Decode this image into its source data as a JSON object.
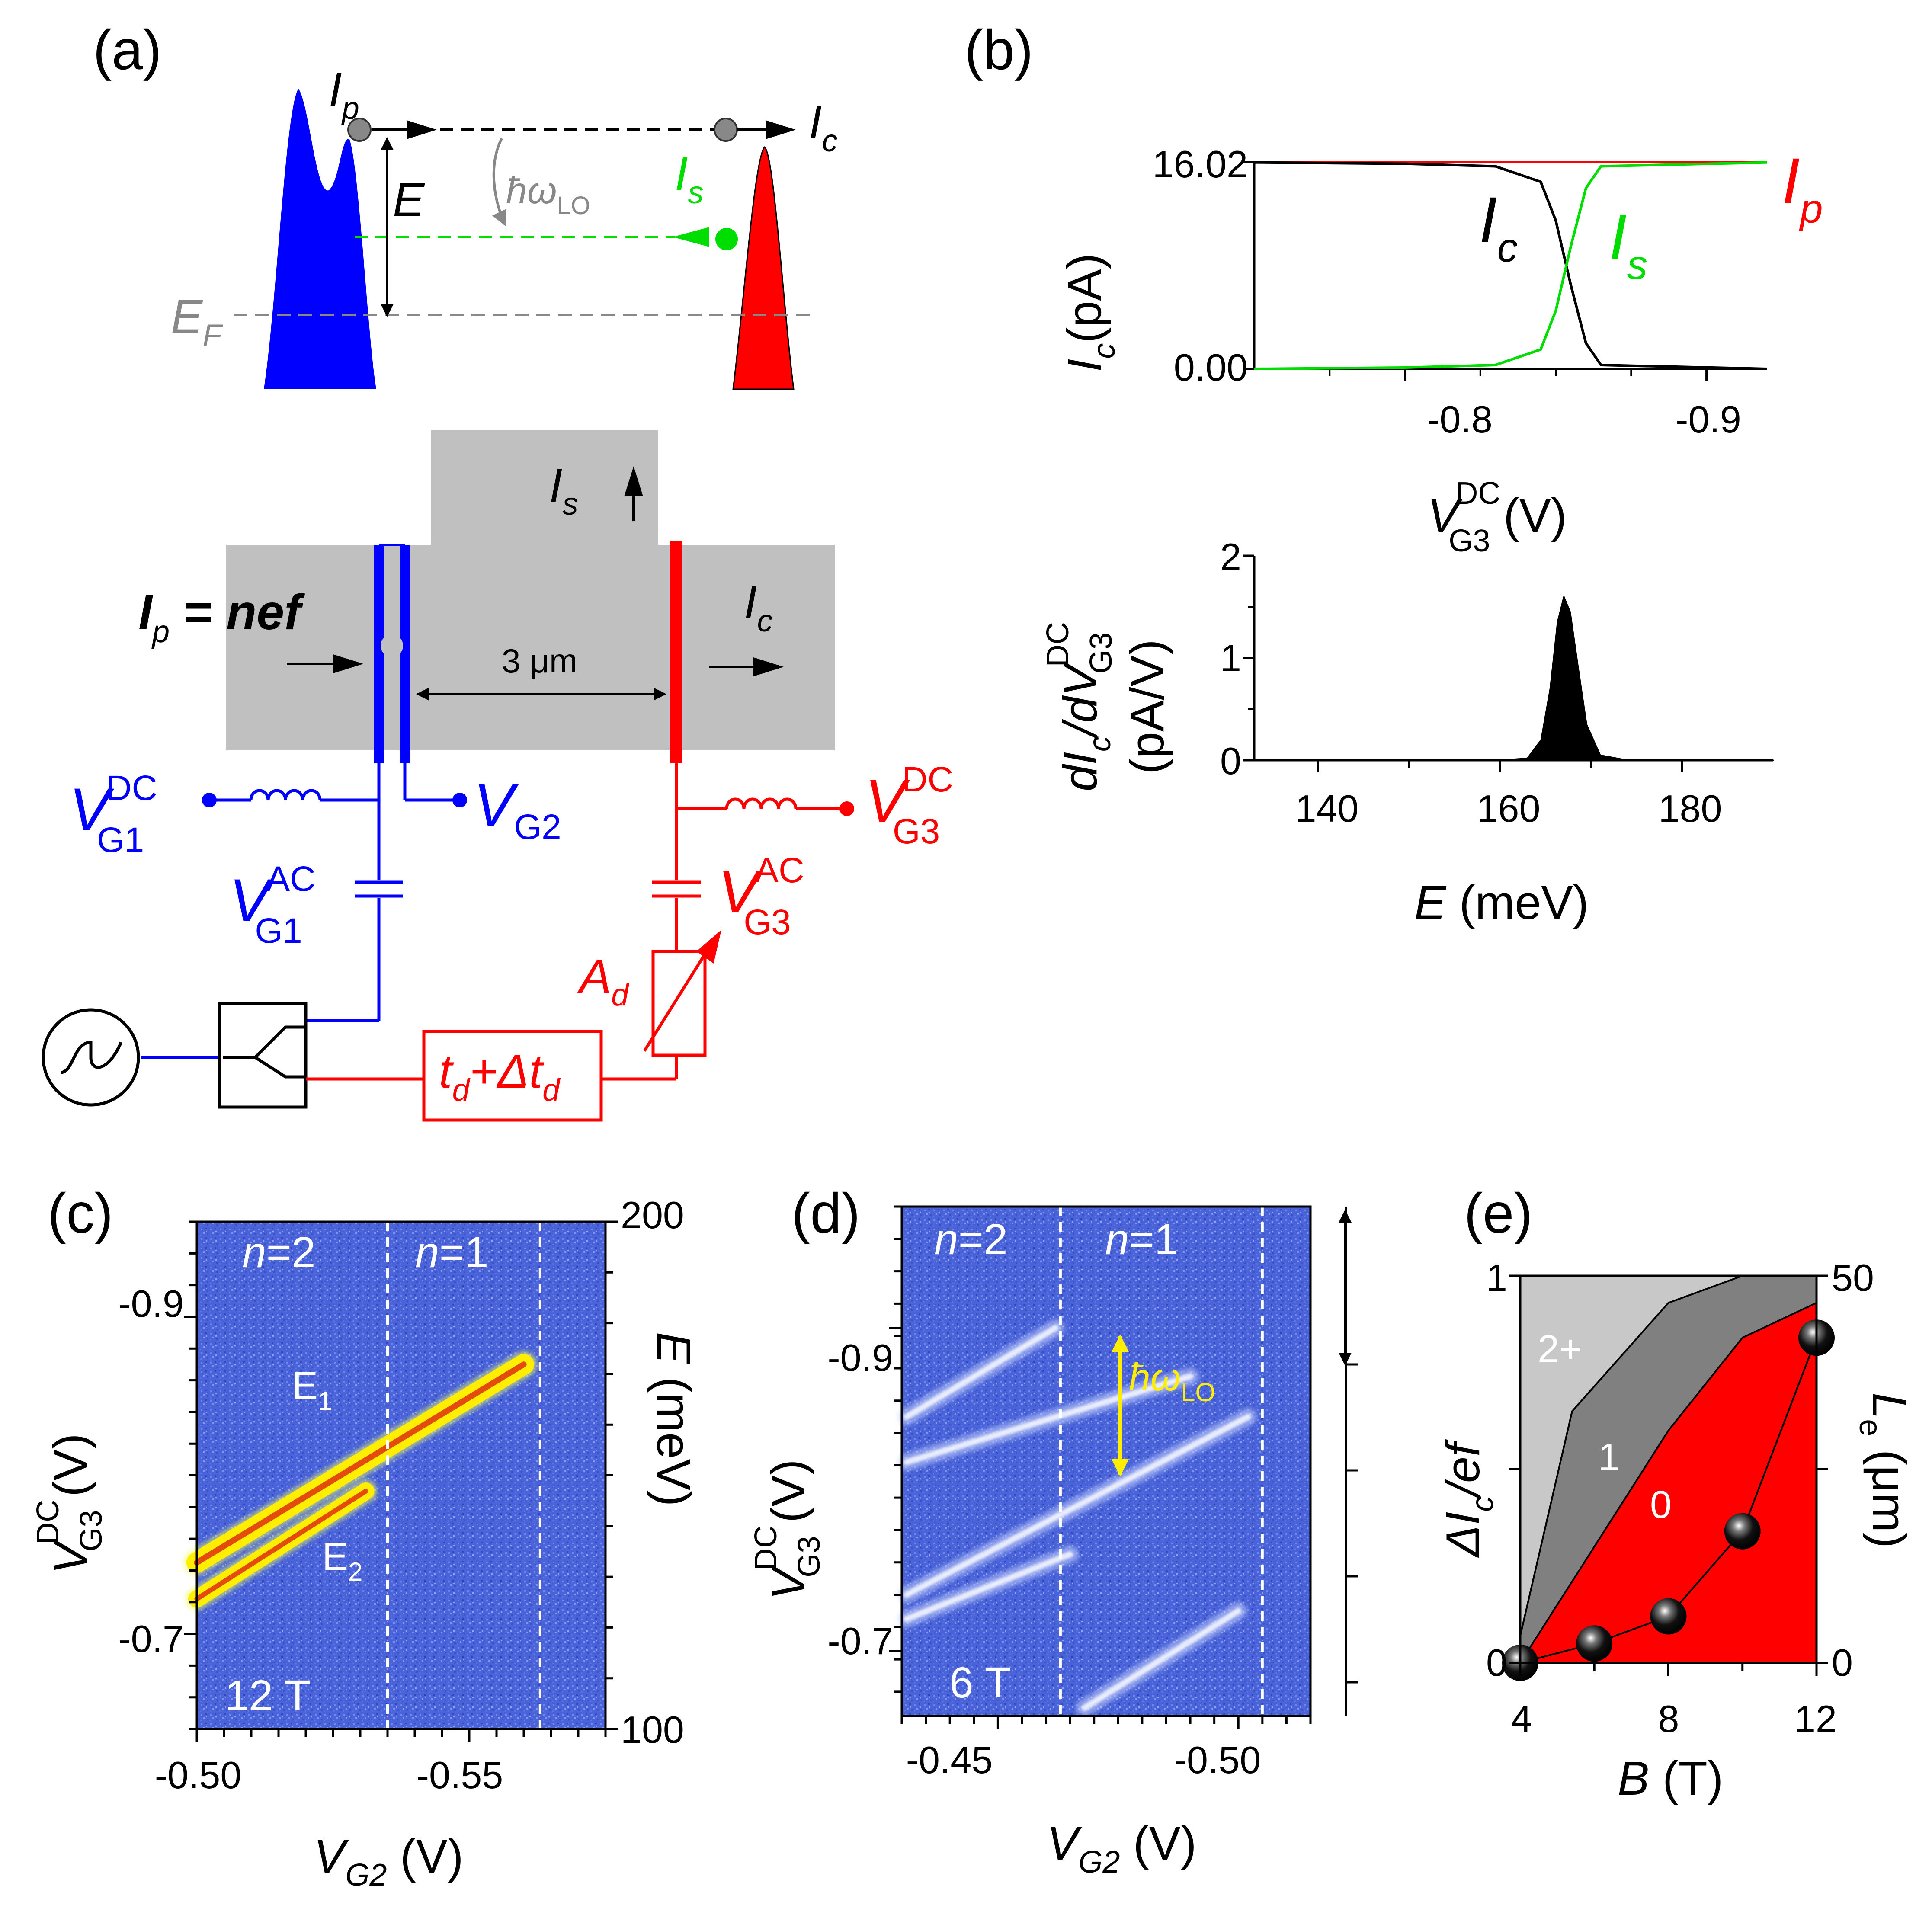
{
  "panels": {
    "a": "(a)",
    "b": "(b)",
    "c": "(c)",
    "d": "(d)",
    "e": "(e)"
  },
  "a": {
    "Ip": "I",
    "Ip_sub": "p",
    "Ic": "I",
    "Ic_sub": "c",
    "Is": "I",
    "Is_sub": "s",
    "E": "E",
    "EF": "E",
    "EF_sub": "F",
    "hw": "ħω",
    "hw_sub": "LO",
    "eq_I": "I",
    "eq_sub": "p",
    "eq_rest": " = nef",
    "dist": "3 μm",
    "VG1": "V",
    "VG1_sup": "DC",
    "VG1_sub": "G1",
    "VG2": "V",
    "VG2_sub": "G2",
    "VG3": "V",
    "VG3_sup": "DC",
    "VG3_sub": "G3",
    "VG1ac": "V",
    "VG1ac_sup": "AC",
    "VG1ac_sub": "G1",
    "VG3ac": "V",
    "VG3ac_sup": "AC",
    "VG3ac_sub": "G3",
    "Ad": "A",
    "Ad_sub": "d",
    "td_t": "t",
    "td_sub": "d",
    "td_plus": "+Δt",
    "td_sub2": "d"
  },
  "b_top": {
    "ylabel": "I",
    "ylabel_sub": "c",
    "ylabel_unit": "(pA)",
    "xlabel": "V",
    "xlabel_sup": "DC",
    "xlabel_sub": "G3",
    "xlabel_unit": " (V)",
    "yticks": [
      "16.02",
      "0.00"
    ],
    "xticks": [
      "-0.8",
      "-0.9"
    ],
    "Ic": "I",
    "Ic_sub": "c",
    "Is": "I",
    "Is_sub": "s",
    "Ip": "I",
    "Ip_sub": "p",
    "colors": {
      "Ic": "#000000",
      "Is": "#00dd00",
      "Ip": "#ff0000"
    }
  },
  "b_bot": {
    "ylabel1": "dI",
    "ylabel1_sub": "c",
    "ylabel1_mid": "/dV",
    "ylabel1_sup": "DC",
    "ylabel1_sub2": "G3",
    "ylabel2": "(pA/V)",
    "yticks": [
      "2",
      "1",
      "0"
    ],
    "xticks": [
      "140",
      "160",
      "180"
    ],
    "xlabel": "E",
    "xlabel_unit": " (meV)"
  },
  "c": {
    "n2": "n",
    "n2_rest": "=2",
    "n1": "n",
    "n1_rest": "=1",
    "E1": "E",
    "E1_sub": "1",
    "E2": "E",
    "E2_sub": "2",
    "field": "12 T",
    "yticks": [
      "-0.9",
      "-0.7"
    ],
    "xticks": [
      "-0.50",
      "-0.55"
    ],
    "ylabel": "V",
    "ylabel_sup": "DC",
    "ylabel_sub": "G3",
    "ylabel_unit": " (V)",
    "xlabel": "V",
    "xlabel_sub": "G2",
    "xlabel_unit": " (V)",
    "rticks": [
      "200",
      "100"
    ],
    "rlabel": "E",
    "rlabel_unit": " (meV)"
  },
  "d": {
    "n2": "n",
    "n2_rest": "=2",
    "n1": "n",
    "n1_rest": "=1",
    "field": "6 T",
    "hw": "ħω",
    "hw_sub": "LO",
    "yticks": [
      "-0.9",
      "-0.7"
    ],
    "xticks": [
      "-0.45",
      "-0.50"
    ],
    "ylabel": "V",
    "ylabel_sup": "DC",
    "ylabel_sub": "G3",
    "ylabel_unit": " (V)",
    "xlabel": "V",
    "xlabel_sub": "G2",
    "xlabel_unit": " (V)"
  },
  "e": {
    "regions": [
      "2+",
      "1",
      "0"
    ],
    "yticks": [
      "1",
      "0"
    ],
    "xticks": [
      "4",
      "8",
      "12"
    ],
    "rticks": [
      "50",
      "0"
    ],
    "ylabel": "ΔI",
    "ylabel_sub": "c",
    "ylabel_rest": "/ef",
    "xlabel": "B",
    "xlabel_unit": " (T)",
    "rlabel": "L",
    "rlabel_sub": "e",
    "rlabel_unit": " (μm)",
    "colors": {
      "region_2plus": "#c8c8c8",
      "region_1": "#808080",
      "region_0": "#ff0000"
    }
  },
  "chart_data": [
    {
      "type": "line",
      "panel": "b-top",
      "xlabel": "V_G3^DC (V)",
      "ylabel": "I_c (pA)",
      "xlim": [
        -0.75,
        -0.92
      ],
      "ylim": [
        0,
        16.02
      ],
      "series": [
        {
          "name": "I_p",
          "x": [
            -0.75,
            -0.92
          ],
          "values": [
            16.02,
            16.02
          ]
        },
        {
          "name": "I_c",
          "x": [
            -0.75,
            -0.8,
            -0.83,
            -0.845,
            -0.85,
            -0.855,
            -0.86,
            -0.865,
            -0.92
          ],
          "values": [
            16.0,
            15.9,
            15.7,
            14.5,
            11.5,
            6.5,
            2.0,
            0.3,
            0.0
          ]
        },
        {
          "name": "I_s",
          "x": [
            -0.75,
            -0.8,
            -0.83,
            -0.845,
            -0.85,
            -0.855,
            -0.86,
            -0.865,
            -0.92
          ],
          "values": [
            0.0,
            0.1,
            0.3,
            1.5,
            4.5,
            9.5,
            14.0,
            15.7,
            16.0
          ]
        }
      ]
    },
    {
      "type": "area",
      "panel": "b-bottom",
      "xlabel": "E (meV)",
      "ylabel": "dI_c/dV_G3^DC (pA/V)",
      "xlim": [
        133,
        190
      ],
      "ylim": [
        0,
        2
      ],
      "x": [
        133,
        160,
        163,
        164.5,
        165.5,
        166.3,
        167,
        167.7,
        168.5,
        169.5,
        171,
        174,
        190
      ],
      "values": [
        0,
        0,
        0.02,
        0.2,
        0.7,
        1.35,
        1.6,
        1.45,
        0.95,
        0.35,
        0.05,
        0,
        0
      ]
    },
    {
      "type": "heatmap",
      "panel": "c",
      "xlabel": "V_G2 (V)",
      "ylabel": "V_G3^DC (V)",
      "y2label": "E (meV)",
      "xlim": [
        -0.5,
        -0.575
      ],
      "ylim": [
        -0.64,
        -0.96
      ],
      "y2lim": [
        100,
        200
      ],
      "vlines": [
        -0.535,
        -0.563
      ],
      "traces": [
        {
          "name": "E_1",
          "x": [
            -0.5,
            -0.56
          ],
          "y": [
            -0.745,
            -0.87
          ]
        },
        {
          "name": "E_2",
          "x": [
            -0.5,
            -0.531
          ],
          "y": [
            -0.722,
            -0.79
          ]
        }
      ]
    },
    {
      "type": "heatmap",
      "panel": "d",
      "xlabel": "V_G2 (V)",
      "ylabel": "V_G3^DC (V)",
      "xlim": [
        -0.43,
        -0.515
      ],
      "ylim": [
        -0.66,
        -0.975
      ],
      "vlines": [
        -0.463,
        -0.505
      ],
      "traces": [
        {
          "x": [
            -0.431,
            -0.462
          ],
          "y": [
            -0.845,
            -0.9
          ]
        },
        {
          "x": [
            -0.431,
            -0.49
          ],
          "y": [
            -0.817,
            -0.87
          ]
        },
        {
          "x": [
            -0.431,
            -0.502
          ],
          "y": [
            -0.735,
            -0.845
          ]
        },
        {
          "x": [
            -0.431,
            -0.465
          ],
          "y": [
            -0.72,
            -0.76
          ]
        },
        {
          "x": [
            -0.468,
            -0.5
          ],
          "y": [
            -0.665,
            -0.725
          ]
        }
      ]
    },
    {
      "type": "scatter",
      "panel": "e",
      "xlabel": "B (T)",
      "ylabel": "ΔI_c/ef",
      "y2label": "L_e (μm)",
      "xlim": [
        4,
        12
      ],
      "ylim": [
        0,
        1
      ],
      "y2lim": [
        0,
        50
      ],
      "series": [
        {
          "name": "L_e",
          "x": [
            4,
            6,
            8,
            10,
            12
          ],
          "values": [
            0,
            2.5,
            6,
            17,
            42
          ]
        },
        {
          "name": "boundary 0|1",
          "x": [
            4,
            6,
            8,
            10,
            12
          ],
          "values": [
            0,
            0.3,
            0.6,
            0.84,
            0.93
          ]
        },
        {
          "name": "boundary 1|2+",
          "x": [
            4,
            5.4,
            8,
            10,
            12
          ],
          "values": [
            0.07,
            0.65,
            0.93,
            1.0,
            1.0
          ]
        }
      ]
    }
  ]
}
